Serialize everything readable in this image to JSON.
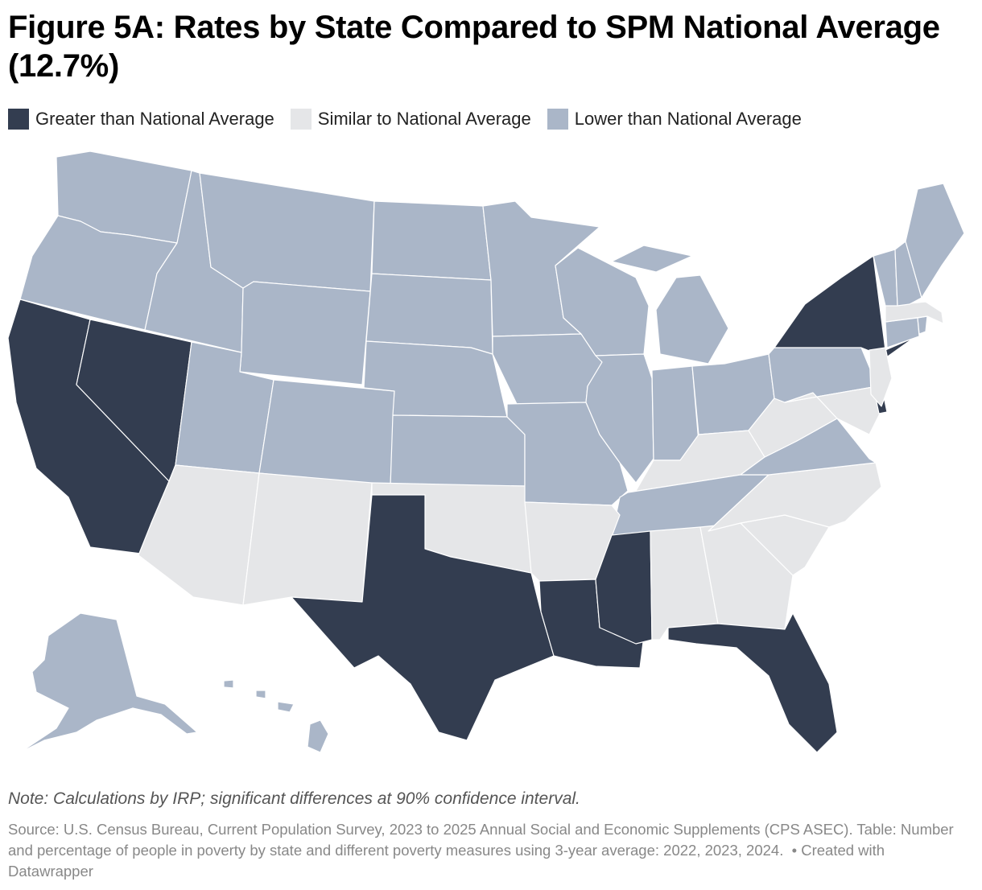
{
  "title": "Figure 5A: Rates by State Compared to SPM National Average (12.7%)",
  "legend": [
    {
      "label": "Greater than National Average",
      "color": "#333d50"
    },
    {
      "label": "Similar to National Average",
      "color": "#e5e6e8"
    },
    {
      "label": "Lower than National Average",
      "color": "#aab6c8"
    }
  ],
  "note": "Note: Calculations by IRP; significant differences at 90% confidence interval.",
  "source": "Source: U.S. Census Bureau, Current Population Survey, 2023 to 2025 Annual Social and Economic Supplements (CPS ASEC). Table: Number and percentage of people in poverty by state and different poverty measures using 3-year average: 2022, 2023, 2024.",
  "credit": "• Created with Datawrapper",
  "categories": {
    "greater": [
      "California",
      "Nevada",
      "Texas",
      "Louisiana",
      "Mississippi",
      "Florida",
      "New York",
      "Delaware"
    ],
    "similar": [
      "Arizona",
      "New Mexico",
      "Oklahoma",
      "Arkansas",
      "Alabama",
      "Georgia",
      "South Carolina",
      "North Carolina",
      "Kentucky",
      "West Virginia",
      "Maryland",
      "New Jersey",
      "Massachusetts"
    ],
    "lower": [
      "Washington",
      "Oregon",
      "Idaho",
      "Montana",
      "Wyoming",
      "Utah",
      "Colorado",
      "North Dakota",
      "South Dakota",
      "Nebraska",
      "Kansas",
      "Minnesota",
      "Iowa",
      "Missouri",
      "Wisconsin",
      "Illinois",
      "Michigan",
      "Indiana",
      "Ohio",
      "Pennsylvania",
      "Virginia",
      "Tennessee",
      "Vermont",
      "New Hampshire",
      "Maine",
      "Connecticut",
      "Rhode Island",
      "Alaska",
      "Hawaii"
    ]
  }
}
